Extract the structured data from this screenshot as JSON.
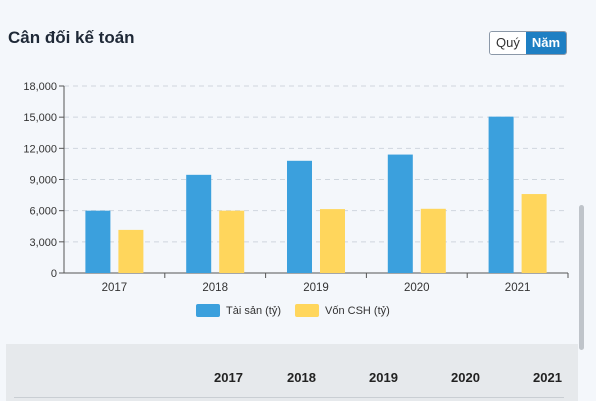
{
  "header": {
    "title": "Cân đối kế toán",
    "period_toggle": {
      "options": [
        "Quý",
        "Năm"
      ],
      "selected": "Năm"
    }
  },
  "chart_data": {
    "type": "bar",
    "categories": [
      "2017",
      "2018",
      "2019",
      "2020",
      "2021"
    ],
    "series": [
      {
        "name": "Tài sản (tỷ)",
        "color": "#3ba0dd",
        "values": [
          6000,
          9450,
          10800,
          11400,
          15050
        ]
      },
      {
        "name": "Vốn CSH (tỷ)",
        "color": "#ffd65c",
        "values": [
          4150,
          6000,
          6150,
          6180,
          7600
        ]
      }
    ],
    "yticks": [
      "0",
      "3,000",
      "6,000",
      "9,000",
      "12,000",
      "15,000",
      "18,000"
    ],
    "ylim": [
      0,
      18000
    ],
    "grid": true,
    "legend_position": "bottom"
  },
  "table": {
    "years": [
      "2017",
      "2018",
      "2019",
      "2020",
      "2021"
    ]
  }
}
